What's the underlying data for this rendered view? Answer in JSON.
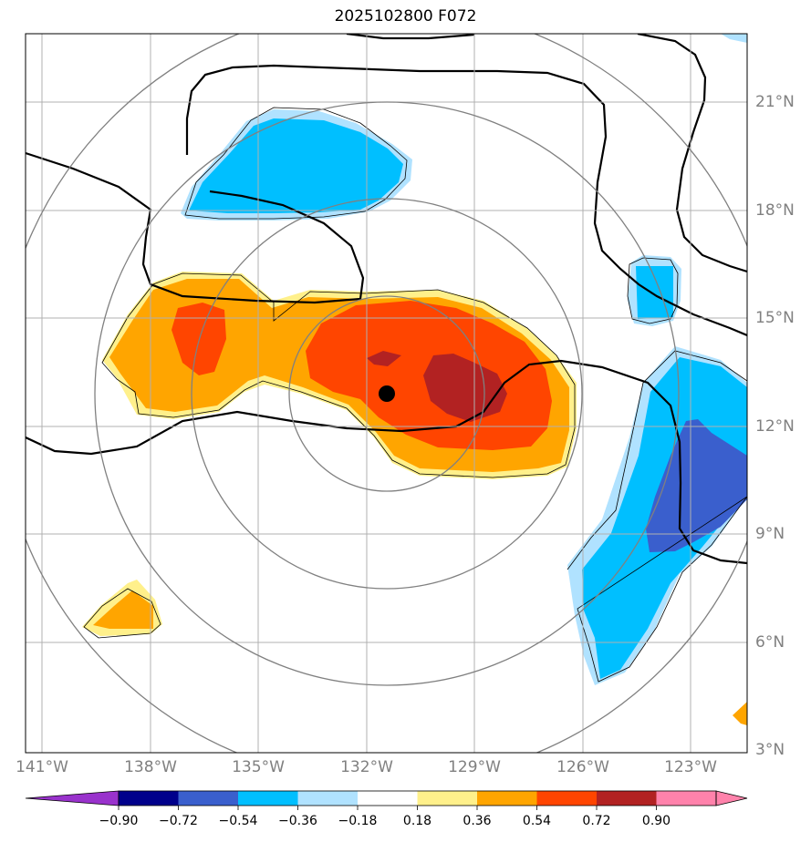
{
  "title": "2025102800 F072",
  "colors": {
    "background": "#ffffff",
    "frame": "#000000",
    "grid": "#b0b0b0",
    "range_rings": "#808080",
    "contour": "#000000",
    "center_marker": "#000000",
    "tick_text": "#808080"
  },
  "axes": {
    "lon_ticks": [
      "141°W",
      "138°W",
      "135°W",
      "132°W",
      "129°W",
      "126°W",
      "123°W"
    ],
    "lat_ticks": [
      "21°N",
      "18°N",
      "15°N",
      "12°N",
      "9°N",
      "6°N",
      "3°N"
    ]
  },
  "map_data": {
    "lon_range": [
      -141.5,
      -121.3
    ],
    "lat_range": [
      2.9,
      22.9
    ],
    "center": {
      "lon": -131.5,
      "lat": 12.9
    },
    "range_rings_degrees": [
      2.7,
      5.4,
      8.1,
      10.8
    ],
    "shaded_field": "anomaly",
    "features": [
      {
        "sign": "positive",
        "max_level": 0.9,
        "location_lon": -129.5,
        "location_lat": 12.8
      },
      {
        "sign": "positive",
        "max_level": 0.72,
        "location_lon": -136.5,
        "location_lat": 14.3
      },
      {
        "sign": "positive",
        "max_level": 0.54,
        "location_lon": -139.0,
        "location_lat": 6.8
      },
      {
        "sign": "negative",
        "min_level": -0.54,
        "location_lon": -134.5,
        "location_lat": 19.3
      },
      {
        "sign": "negative",
        "min_level": -0.54,
        "location_lon": -124.2,
        "location_lat": 15.8
      },
      {
        "sign": "negative",
        "min_level": -0.72,
        "location_lon": -123.5,
        "location_lat": 10.0
      }
    ]
  },
  "colorbar": {
    "boundaries": [
      "−0.90",
      "−0.72",
      "−0.54",
      "−0.36",
      "−0.18",
      "0.18",
      "0.36",
      "0.54",
      "0.72",
      "0.90"
    ],
    "colors": [
      "#9932cc",
      "#00008b",
      "#3a5fcd",
      "#00bfff",
      "#b0e2ff",
      "#ffffff",
      "#fff08b",
      "#ffa500",
      "#ff4500",
      "#b22222",
      "#ff82ab"
    ]
  }
}
